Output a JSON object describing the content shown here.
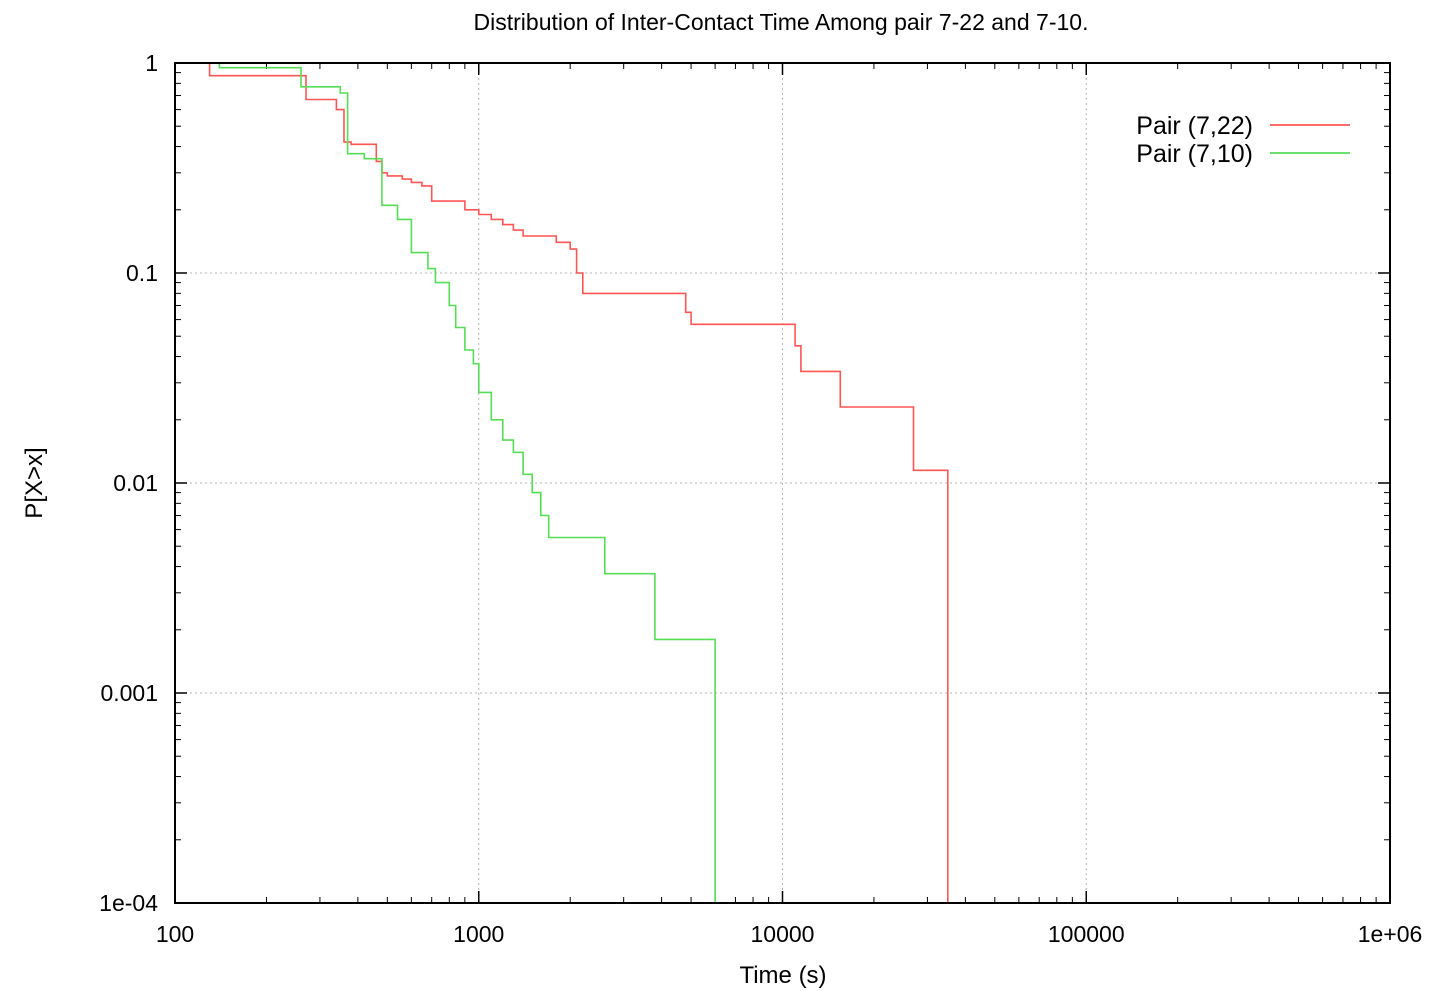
{
  "chart_data": {
    "type": "line",
    "title": "Distribution of Inter-Contact Time Among pair 7-22 and 7-10.",
    "xlabel": "Time (s)",
    "ylabel": "P[X>x]",
    "xscale": "log",
    "yscale": "log",
    "xlim": [
      100,
      1000000
    ],
    "ylim": [
      0.0001,
      1
    ],
    "xticks": [
      "100",
      "1000",
      "10000",
      "100000",
      "1e+06"
    ],
    "yticks": [
      "1e-04",
      "0.001",
      "0.01",
      "0.1",
      "1"
    ],
    "grid": true,
    "legend_position": "top-right",
    "series": [
      {
        "name": "Pair (7,22)",
        "color": "#ff5555",
        "x": [
          100,
          130,
          250,
          270,
          320,
          340,
          360,
          380,
          420,
          460,
          480,
          500,
          520,
          560,
          600,
          650,
          700,
          800,
          900,
          1000,
          1100,
          1200,
          1300,
          1400,
          1600,
          1800,
          2000,
          2100,
          2200,
          2300,
          2500,
          3000,
          4000,
          4800,
          5000,
          6000,
          8000,
          11000,
          11500,
          15500,
          27000,
          35000
        ],
        "y": [
          1,
          0.87,
          0.87,
          0.67,
          0.67,
          0.6,
          0.42,
          0.41,
          0.41,
          0.34,
          0.3,
          0.29,
          0.29,
          0.28,
          0.27,
          0.26,
          0.22,
          0.22,
          0.2,
          0.19,
          0.18,
          0.17,
          0.16,
          0.15,
          0.15,
          0.14,
          0.13,
          0.1,
          0.08,
          0.08,
          0.08,
          0.08,
          0.08,
          0.065,
          0.057,
          0.057,
          0.057,
          0.045,
          0.034,
          0.023,
          0.0115,
          0.0001
        ]
      },
      {
        "name": "Pair (7,10)",
        "color": "#55dd55",
        "x": [
          100,
          140,
          240,
          260,
          300,
          350,
          370,
          420,
          480,
          540,
          600,
          680,
          720,
          800,
          840,
          900,
          960,
          1000,
          1100,
          1200,
          1300,
          1400,
          1500,
          1600,
          1700,
          2000,
          2600,
          3800,
          5000,
          6000
        ],
        "y": [
          1,
          0.95,
          0.95,
          0.77,
          0.77,
          0.72,
          0.37,
          0.35,
          0.21,
          0.18,
          0.125,
          0.105,
          0.09,
          0.07,
          0.055,
          0.043,
          0.037,
          0.027,
          0.02,
          0.016,
          0.014,
          0.011,
          0.009,
          0.007,
          0.0055,
          0.0055,
          0.0037,
          0.0018,
          0.0018,
          0.0001
        ]
      }
    ]
  }
}
